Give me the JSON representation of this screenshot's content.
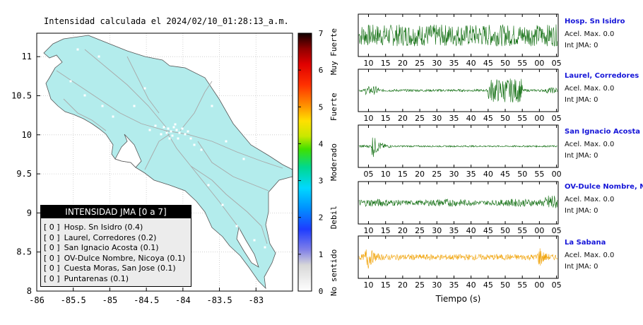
{
  "map": {
    "title": "Intensidad calculada el 2024/02/10_01:28:13_a.m.",
    "x_ticks": [
      "-86",
      "-85.5",
      "-85",
      "-84.5",
      "-84",
      "-83.5",
      "-83"
    ],
    "y_ticks": [
      "11",
      "10.5",
      "10",
      "9.5",
      "9",
      "8.5",
      "8"
    ]
  },
  "legend": {
    "header": "INTENSIDAD JMA [0 a 7]",
    "entries": [
      {
        "level": "[ 0 ]",
        "name": "Hosp. Sn Isidro (0.4)"
      },
      {
        "level": "[ 0 ]",
        "name": "Laurel, Corredores (0.2)"
      },
      {
        "level": "[ 0 ]",
        "name": "San Ignacio Acosta (0.1)"
      },
      {
        "level": "[ 0 ]",
        "name": "OV-Dulce Nombre, Nicoya (0.1)"
      },
      {
        "level": "[ 0 ]",
        "name": "Cuesta Moras, San Jose (0.1)"
      },
      {
        "level": "[ 0 ]",
        "name": "Puntarenas (0.1)"
      }
    ]
  },
  "colorbar": {
    "ticks": [
      "0",
      "1",
      "2",
      "3",
      "4",
      "5",
      "6",
      "7"
    ],
    "labels": [
      "No sentido",
      "Debil",
      "Moderado",
      "Fuerte",
      "Muy Fuerte"
    ]
  },
  "chart_data": {
    "type": "line",
    "xlabel": "Tiempo (s)",
    "panels": [
      {
        "station": "Hosp. Sn Isidro",
        "accel": "Acel. Max. 0.0",
        "int": "Int JMA: 0",
        "ticks": [
          "10",
          "15",
          "20",
          "25",
          "30",
          "35",
          "40",
          "45",
          "50",
          "55",
          "00",
          "05"
        ],
        "first_tick": 10,
        "color": "#0a6a0a"
      },
      {
        "station": "Laurel, Corredores",
        "accel": "Acel. Max. 0.0",
        "int": "Int JMA: 0",
        "ticks": [
          "10",
          "15",
          "20",
          "25",
          "30",
          "35",
          "40",
          "45",
          "50",
          "55",
          "00",
          "05"
        ],
        "first_tick": 10,
        "color": "#0a6a0a"
      },
      {
        "station": "San Ignacio Acosta",
        "accel": "Acel. Max. 0.0",
        "int": "Int JMA: 0",
        "ticks": [
          "05",
          "10",
          "15",
          "20",
          "25",
          "30",
          "35",
          "40",
          "45",
          "50",
          "55",
          "00"
        ],
        "first_tick": 5,
        "color": "#0a6a0a"
      },
      {
        "station": "OV-Dulce Nombre, Nicoya",
        "accel": "Acel. Max. 0.0",
        "int": "Int JMA: 0",
        "ticks": [
          "10",
          "15",
          "20",
          "25",
          "30",
          "35",
          "40",
          "45",
          "50",
          "55",
          "00",
          "05"
        ],
        "first_tick": 10,
        "color": "#0a6a0a"
      },
      {
        "station": "La Sabana",
        "accel": "Acel. Max. 0.0",
        "int": "Int JMA: 0",
        "ticks": [
          "10",
          "15",
          "20",
          "25",
          "30",
          "35",
          "40",
          "45",
          "50",
          "55",
          "00",
          "05"
        ],
        "first_tick": 10,
        "color": "#f0a000"
      }
    ]
  }
}
